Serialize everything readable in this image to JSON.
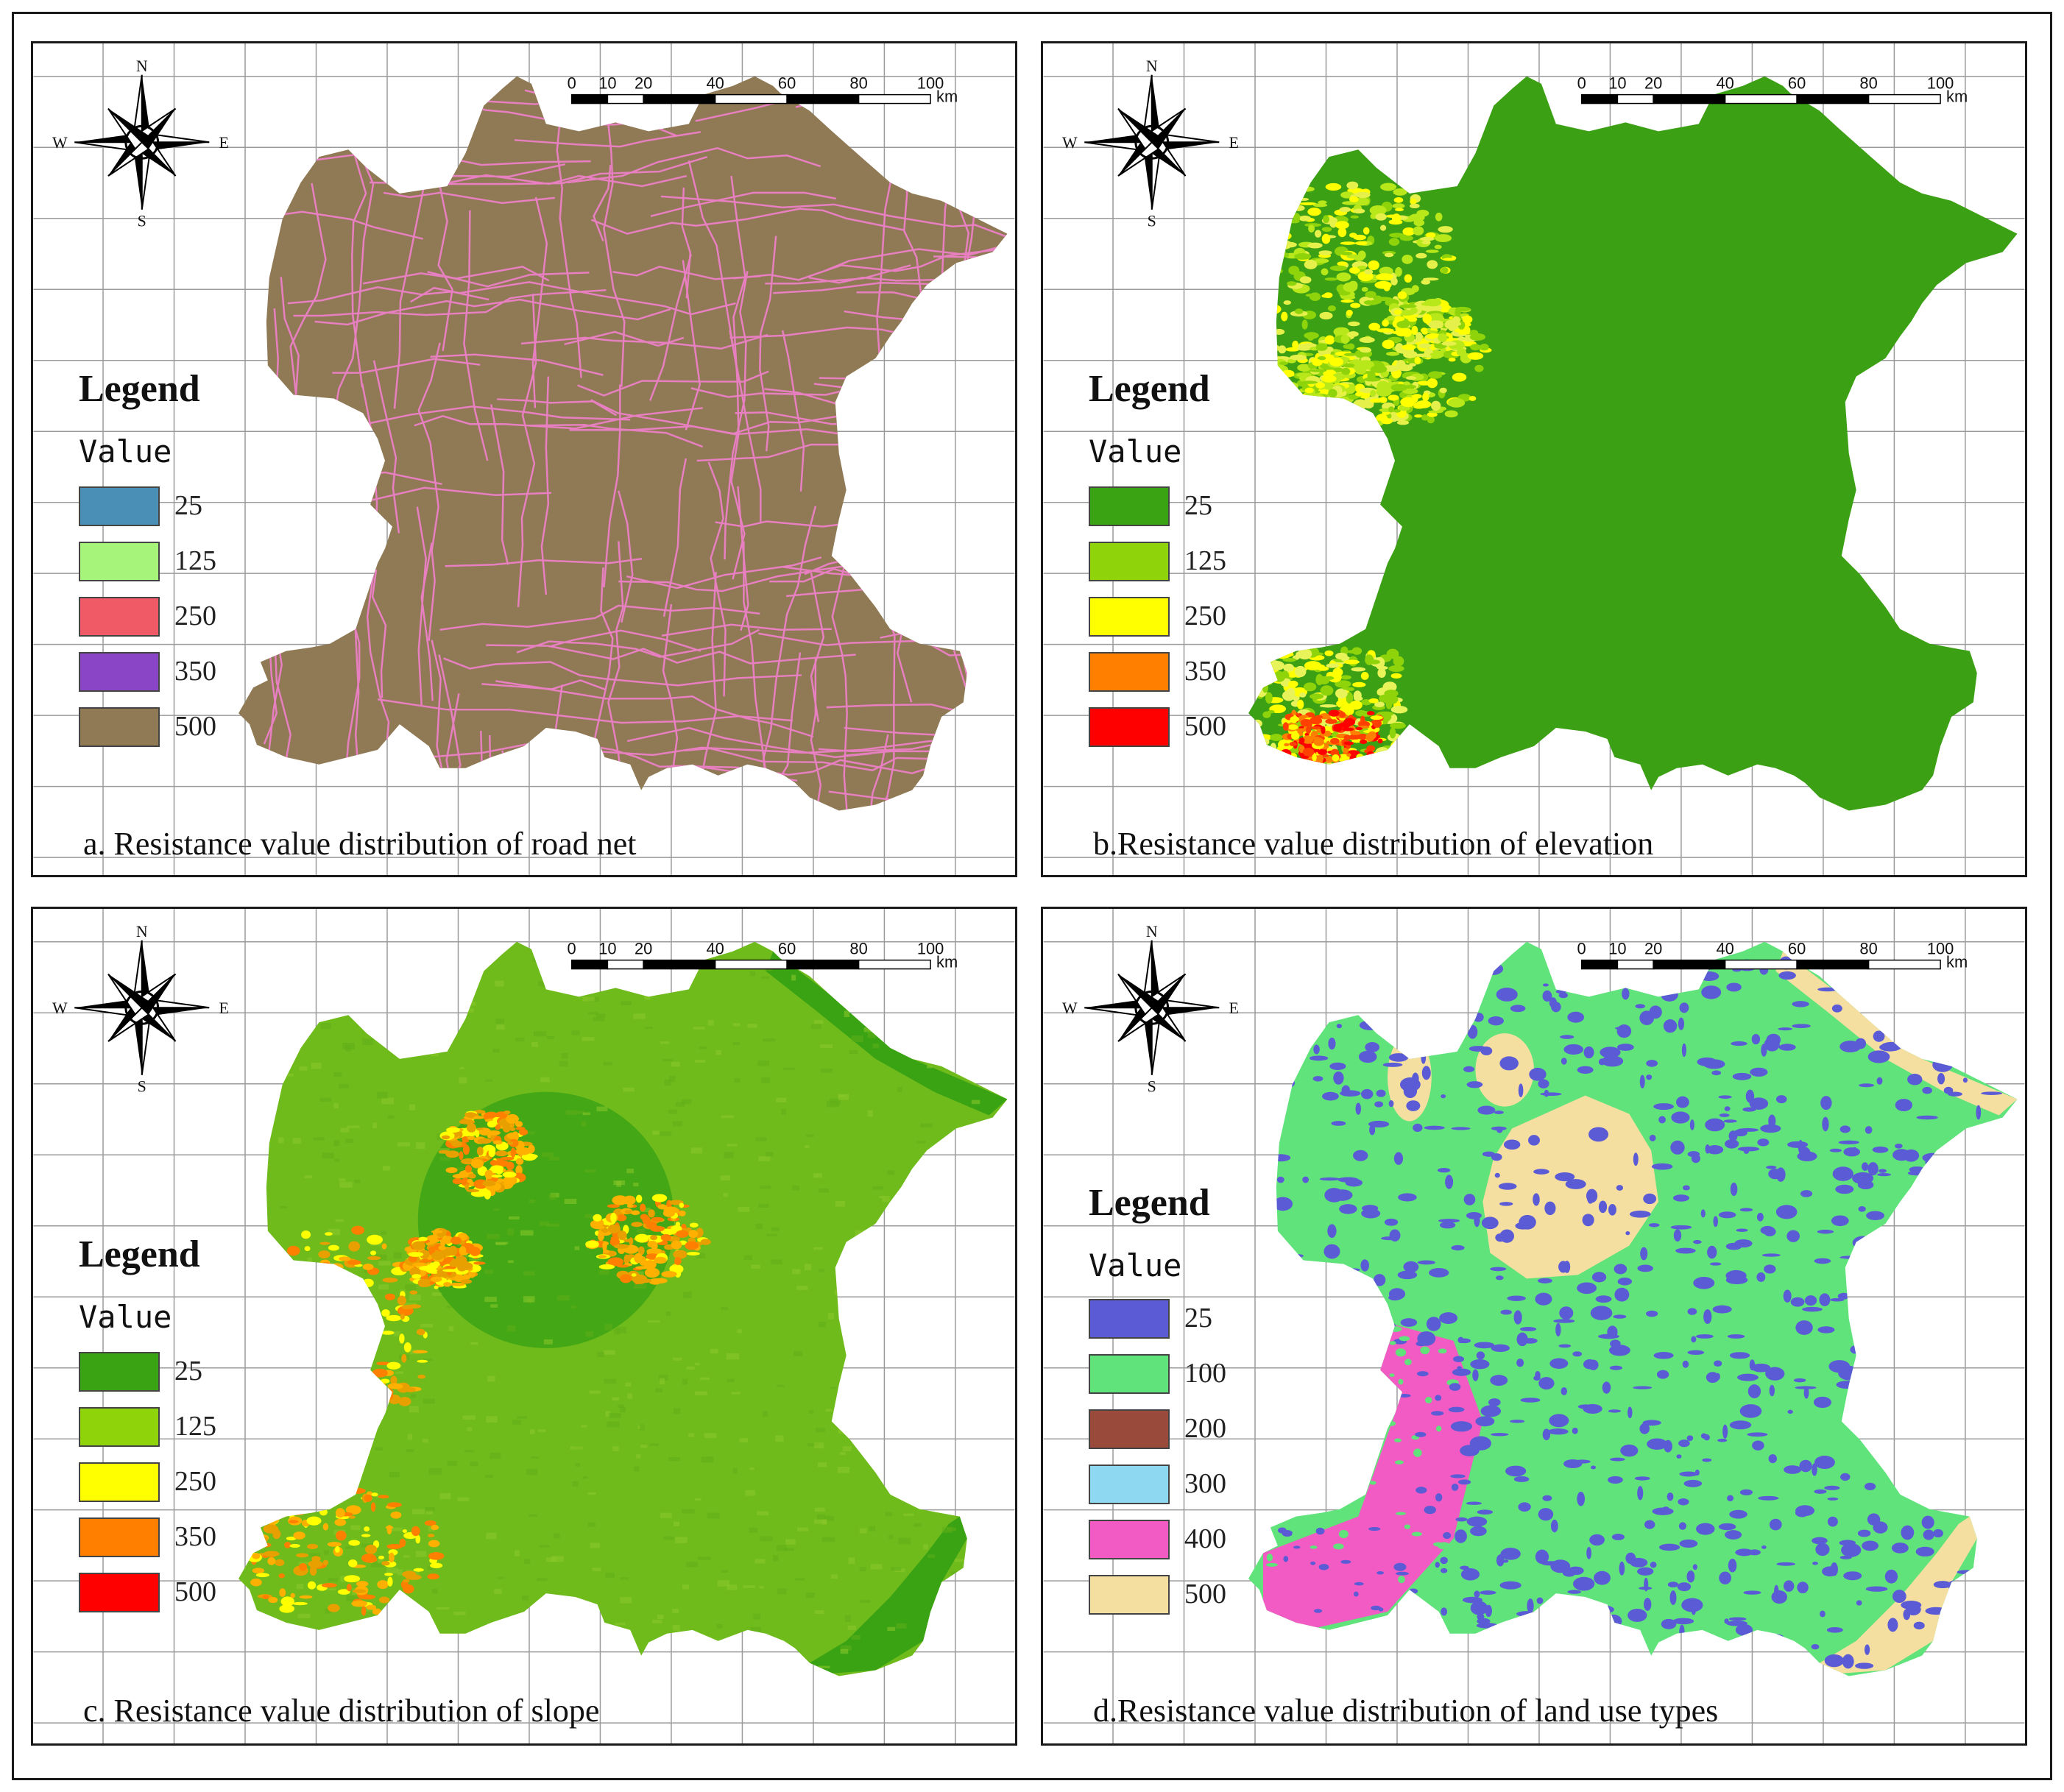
{
  "compass": {
    "n": "N",
    "e": "E",
    "s": "S",
    "w": "W"
  },
  "scale_bar": {
    "ticks": [
      "0",
      "10",
      "20",
      "40",
      "60",
      "80",
      "100"
    ],
    "unit": "km"
  },
  "panels": [
    {
      "caption": "a. Resistance value distribution of road net",
      "legend_title": "Legend",
      "legend_subtitle": "Value",
      "legend": [
        {
          "label": "25",
          "color": "#4a8fb5"
        },
        {
          "label": "125",
          "color": "#a6f57a"
        },
        {
          "label": "250",
          "color": "#f05a66"
        },
        {
          "label": "350",
          "color": "#8a45c7"
        },
        {
          "label": "500",
          "color": "#8f7a55"
        }
      ],
      "map_fill": "#8f7a55",
      "overlay": "roads",
      "road_color": "#e77fc1"
    },
    {
      "caption": "b.Resistance value distribution of elevation",
      "legend_title": "Legend",
      "legend_subtitle": "Value",
      "legend": [
        {
          "label": "25",
          "color": "#3aa314"
        },
        {
          "label": "125",
          "color": "#8fd40a"
        },
        {
          "label": "250",
          "color": "#ffff00"
        },
        {
          "label": "350",
          "color": "#ff8000"
        },
        {
          "label": "500",
          "color": "#ff0000"
        }
      ],
      "map_fill": "#3ca015",
      "overlay": "elevation"
    },
    {
      "caption": "c. Resistance value distribution of slope",
      "legend_title": "Legend",
      "legend_subtitle": "Value",
      "legend": [
        {
          "label": "25",
          "color": "#3aa314"
        },
        {
          "label": "125",
          "color": "#8fd40a"
        },
        {
          "label": "250",
          "color": "#ffff00"
        },
        {
          "label": "350",
          "color": "#ff8000"
        },
        {
          "label": "500",
          "color": "#ff0000"
        }
      ],
      "map_fill": "#6fbb1c",
      "overlay": "slope"
    },
    {
      "caption": "d.Resistance value distribution of land use types",
      "legend_title": "Legend",
      "legend_subtitle": "Value",
      "legend": [
        {
          "label": "25",
          "color": "#5b5bd6"
        },
        {
          "label": "100",
          "color": "#5fe37a"
        },
        {
          "label": "200",
          "color": "#9a4a3a"
        },
        {
          "label": "300",
          "color": "#8fd8f2"
        },
        {
          "label": "400",
          "color": "#f25bc4"
        },
        {
          "label": "500",
          "color": "#f5dfa0"
        }
      ],
      "map_fill": "#5fe37a",
      "overlay": "landuse"
    }
  ]
}
